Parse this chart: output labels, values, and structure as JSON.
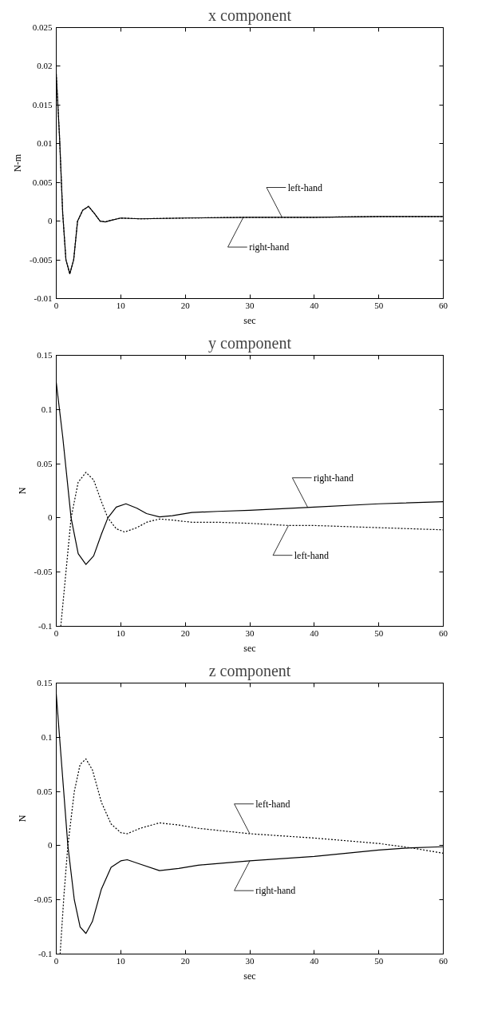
{
  "chart_data": [
    {
      "type": "line",
      "title": "x component",
      "xlabel": "sec",
      "ylabel": "N-m",
      "xlim": [
        0,
        60
      ],
      "ylim": [
        -0.01,
        0.025
      ],
      "xticks": [
        0,
        10,
        20,
        30,
        40,
        50,
        60
      ],
      "yticks": [
        -0.01,
        -0.005,
        0,
        0.005,
        0.01,
        0.015,
        0.02,
        0.025
      ],
      "grid": false,
      "series": [
        {
          "color": "#000000",
          "line_style": "dotted",
          "x": [
            0,
            0.5,
            1,
            1.5,
            2.1,
            2.7,
            3.3,
            4.1,
            5,
            5.9,
            6.8,
            7.6,
            8.5,
            10,
            13,
            20,
            30,
            40,
            50,
            60
          ],
          "values": [
            0.019,
            0.011,
            0.001,
            -0.005,
            -0.0068,
            -0.005,
            0,
            0.0014,
            0.0019,
            0.001,
            0,
            -0.0001,
            0.0001,
            0.0004,
            0.0003,
            0.0004,
            0.0005,
            0.0005,
            0.0006,
            0.0006
          ]
        },
        {
          "color": "#000000",
          "line_style": "solid",
          "x": [
            0,
            0.5,
            1,
            1.5,
            2.1,
            2.7,
            3.3,
            4.1,
            5,
            5.9,
            6.8,
            7.6,
            8.5,
            10,
            13,
            20,
            30,
            40,
            50,
            60
          ],
          "values": [
            0.019,
            0.011,
            0.001,
            -0.005,
            -0.0068,
            -0.005,
            0,
            0.0014,
            0.0019,
            0.001,
            0,
            -0.0001,
            0.0001,
            0.0004,
            0.0003,
            0.0004,
            0.0005,
            0.0005,
            0.0006,
            0.0006
          ]
        }
      ],
      "annotations": [
        {
          "text": "left-hand",
          "x": 35,
          "y": 0.0005
        },
        {
          "text": "right-hand",
          "x": 29,
          "y": 0.0005
        }
      ]
    },
    {
      "type": "line",
      "title": "y component",
      "xlabel": "sec",
      "ylabel": "N",
      "xlim": [
        0,
        60
      ],
      "ylim": [
        -0.1,
        0.15
      ],
      "xticks": [
        0,
        10,
        20,
        30,
        40,
        50,
        60
      ],
      "yticks": [
        -0.1,
        -0.05,
        0,
        0.05,
        0.1,
        0.15
      ],
      "grid": false,
      "series": [
        {
          "color": "#000000",
          "line_style": "solid",
          "x": [
            0,
            1,
            2.3,
            3.4,
            4.6,
            5.8,
            7,
            8,
            9.3,
            10.8,
            12.5,
            14,
            16,
            18,
            21,
            25,
            30,
            40,
            50,
            60
          ],
          "values": [
            0.125,
            0.075,
            0,
            -0.033,
            -0.043,
            -0.035,
            -0.015,
            0,
            0.01,
            0.013,
            0.009,
            0.004,
            0.001,
            0.002,
            0.005,
            0.006,
            0.007,
            0.01,
            0.013,
            0.015
          ]
        },
        {
          "color": "#000000",
          "line_style": "dotted",
          "x": [
            0.7,
            1.5,
            2.3,
            3.4,
            4.6,
            5.8,
            7,
            8,
            9.3,
            10.6,
            12.5,
            14,
            16,
            18,
            21,
            25,
            30,
            36,
            40,
            50,
            60
          ],
          "values": [
            -0.1,
            -0.05,
            0,
            0.033,
            0.042,
            0.035,
            0.015,
            0,
            -0.01,
            -0.013,
            -0.009,
            -0.004,
            -0.001,
            -0.002,
            -0.004,
            -0.004,
            -0.005,
            -0.007,
            -0.007,
            -0.009,
            -0.011
          ]
        }
      ],
      "annotations": [
        {
          "text": "right-hand",
          "x": 39,
          "y": 0.0095
        },
        {
          "text": "left-hand",
          "x": 36,
          "y": -0.007
        }
      ]
    },
    {
      "type": "line",
      "title": "z component",
      "xlabel": "sec",
      "ylabel": "N",
      "xlim": [
        0,
        60
      ],
      "ylim": [
        -0.1,
        0.15
      ],
      "xticks": [
        0,
        10,
        20,
        30,
        40,
        50,
        60
      ],
      "yticks": [
        -0.1,
        -0.05,
        0,
        0.05,
        0.1,
        0.15
      ],
      "grid": false,
      "series": [
        {
          "color": "#000000",
          "line_style": "dotted",
          "x": [
            0.6,
            1.2,
            1.8,
            2.8,
            3.7,
            4.6,
            5.6,
            7,
            8.5,
            10,
            11,
            13,
            16,
            19,
            22,
            30,
            40,
            50,
            55,
            60
          ],
          "values": [
            -0.1,
            -0.045,
            0,
            0.05,
            0.075,
            0.08,
            0.07,
            0.04,
            0.02,
            0.012,
            0.011,
            0.016,
            0.021,
            0.019,
            0.016,
            0.011,
            0.007,
            0.002,
            -0.002,
            -0.007
          ]
        },
        {
          "color": "#000000",
          "line_style": "solid",
          "x": [
            0,
            0.9,
            1.8,
            2.8,
            3.7,
            4.6,
            5.6,
            7,
            8.5,
            10,
            11,
            13,
            16,
            19,
            22,
            30,
            40,
            50,
            55,
            60
          ],
          "values": [
            0.14,
            0.07,
            0,
            -0.05,
            -0.075,
            -0.081,
            -0.07,
            -0.04,
            -0.02,
            -0.014,
            -0.013,
            -0.017,
            -0.023,
            -0.021,
            -0.018,
            -0.014,
            -0.01,
            -0.004,
            -0.002,
            -0.001
          ]
        }
      ],
      "annotations": [
        {
          "text": "left-hand",
          "x": 30,
          "y": 0.011
        },
        {
          "text": "right-hand",
          "x": 30,
          "y": -0.014
        }
      ]
    }
  ]
}
